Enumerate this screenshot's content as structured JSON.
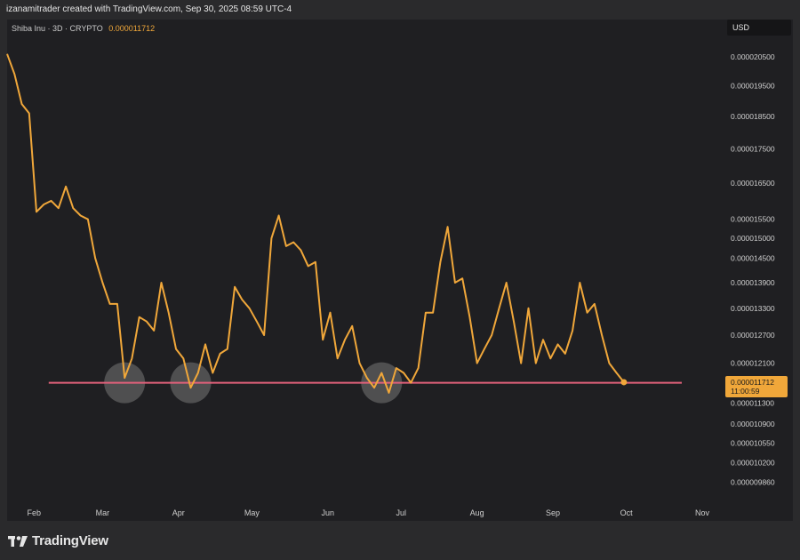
{
  "header": {
    "attribution": "izanamitrader created with TradingView.com, Sep 30, 2025 08:59 UTC-4"
  },
  "symbol": {
    "description": "Shiba Inu · 3D · CRYPTO",
    "last_price": "0.000011712"
  },
  "currency_label": "USD",
  "price_badge": {
    "value": "0.000011712",
    "countdown": "11:00:59",
    "color": "#f0a73a"
  },
  "footer": {
    "brand": "TradingView",
    "logo_icon": "tradingview-logo-icon"
  },
  "colors": {
    "line": "#f0a73a",
    "support": "#e0607a",
    "background": "#1f1f22",
    "highlight": "#8a8a8a"
  },
  "chart_data": {
    "type": "line",
    "title": "",
    "xlabel": "",
    "ylabel": "",
    "y_scale": "log",
    "ylim": [
      9.6e-06,
      2.11e-05
    ],
    "x_ticks": [
      {
        "label": "Feb",
        "date": "2025-02-01"
      },
      {
        "label": "Mar",
        "date": "2025-03-01"
      },
      {
        "label": "Apr",
        "date": "2025-04-01"
      },
      {
        "label": "May",
        "date": "2025-05-01"
      },
      {
        "label": "Jun",
        "date": "2025-06-01"
      },
      {
        "label": "Jul",
        "date": "2025-07-01"
      },
      {
        "label": "Aug",
        "date": "2025-08-01"
      },
      {
        "label": "Sep",
        "date": "2025-09-01"
      },
      {
        "label": "Oct",
        "date": "2025-10-01"
      },
      {
        "label": "Nov",
        "date": "2025-11-01"
      }
    ],
    "y_ticks": [
      "0.000020500",
      "0.000019500",
      "0.000018500",
      "0.000017500",
      "0.000016500",
      "0.000015500",
      "0.000015000",
      "0.000014500",
      "0.000013900",
      "0.000013300",
      "0.000012700",
      "0.000012100",
      "0.000011300",
      "0.000010900",
      "0.000010550",
      "0.000010200",
      "0.000009860"
    ],
    "series": [
      {
        "points": [
          [
            "2025-01-21",
            2.06e-05
          ],
          [
            "2025-01-24",
            1.99e-05
          ],
          [
            "2025-01-27",
            1.89e-05
          ],
          [
            "2025-01-30",
            1.86e-05
          ],
          [
            "2025-02-02",
            1.57e-05
          ],
          [
            "2025-02-05",
            1.59e-05
          ],
          [
            "2025-02-08",
            1.6e-05
          ],
          [
            "2025-02-11",
            1.58e-05
          ],
          [
            "2025-02-14",
            1.64e-05
          ],
          [
            "2025-02-17",
            1.58e-05
          ],
          [
            "2025-02-20",
            1.56e-05
          ],
          [
            "2025-02-23",
            1.55e-05
          ],
          [
            "2025-02-26",
            1.45e-05
          ],
          [
            "2025-03-01",
            1.39e-05
          ],
          [
            "2025-03-04",
            1.34e-05
          ],
          [
            "2025-03-07",
            1.34e-05
          ],
          [
            "2025-03-10",
            1.18e-05
          ],
          [
            "2025-03-13",
            1.22e-05
          ],
          [
            "2025-03-16",
            1.31e-05
          ],
          [
            "2025-03-19",
            1.3e-05
          ],
          [
            "2025-03-22",
            1.28e-05
          ],
          [
            "2025-03-25",
            1.39e-05
          ],
          [
            "2025-03-28",
            1.32e-05
          ],
          [
            "2025-03-31",
            1.24e-05
          ],
          [
            "2025-04-03",
            1.22e-05
          ],
          [
            "2025-04-06",
            1.16e-05
          ],
          [
            "2025-04-09",
            1.19e-05
          ],
          [
            "2025-04-12",
            1.25e-05
          ],
          [
            "2025-04-15",
            1.19e-05
          ],
          [
            "2025-04-18",
            1.23e-05
          ],
          [
            "2025-04-21",
            1.24e-05
          ],
          [
            "2025-04-24",
            1.38e-05
          ],
          [
            "2025-04-27",
            1.35e-05
          ],
          [
            "2025-04-30",
            1.33e-05
          ],
          [
            "2025-05-03",
            1.3e-05
          ],
          [
            "2025-05-06",
            1.27e-05
          ],
          [
            "2025-05-09",
            1.5e-05
          ],
          [
            "2025-05-12",
            1.56e-05
          ],
          [
            "2025-05-15",
            1.48e-05
          ],
          [
            "2025-05-18",
            1.49e-05
          ],
          [
            "2025-05-21",
            1.47e-05
          ],
          [
            "2025-05-24",
            1.43e-05
          ],
          [
            "2025-05-27",
            1.44e-05
          ],
          [
            "2025-05-30",
            1.26e-05
          ],
          [
            "2025-06-02",
            1.32e-05
          ],
          [
            "2025-06-05",
            1.22e-05
          ],
          [
            "2025-06-08",
            1.26e-05
          ],
          [
            "2025-06-11",
            1.29e-05
          ],
          [
            "2025-06-14",
            1.21e-05
          ],
          [
            "2025-06-17",
            1.18e-05
          ],
          [
            "2025-06-20",
            1.16e-05
          ],
          [
            "2025-06-23",
            1.19e-05
          ],
          [
            "2025-06-26",
            1.15e-05
          ],
          [
            "2025-06-29",
            1.2e-05
          ],
          [
            "2025-07-02",
            1.19e-05
          ],
          [
            "2025-07-05",
            1.17e-05
          ],
          [
            "2025-07-08",
            1.2e-05
          ],
          [
            "2025-07-11",
            1.32e-05
          ],
          [
            "2025-07-14",
            1.32e-05
          ],
          [
            "2025-07-17",
            1.44e-05
          ],
          [
            "2025-07-20",
            1.53e-05
          ],
          [
            "2025-07-23",
            1.39e-05
          ],
          [
            "2025-07-26",
            1.4e-05
          ],
          [
            "2025-07-29",
            1.31e-05
          ],
          [
            "2025-08-01",
            1.21e-05
          ],
          [
            "2025-08-04",
            1.24e-05
          ],
          [
            "2025-08-07",
            1.27e-05
          ],
          [
            "2025-08-10",
            1.33e-05
          ],
          [
            "2025-08-13",
            1.39e-05
          ],
          [
            "2025-08-16",
            1.3e-05
          ],
          [
            "2025-08-19",
            1.21e-05
          ],
          [
            "2025-08-22",
            1.33e-05
          ],
          [
            "2025-08-25",
            1.21e-05
          ],
          [
            "2025-08-28",
            1.26e-05
          ],
          [
            "2025-08-31",
            1.22e-05
          ],
          [
            "2025-09-03",
            1.25e-05
          ],
          [
            "2025-09-06",
            1.23e-05
          ],
          [
            "2025-09-09",
            1.28e-05
          ],
          [
            "2025-09-12",
            1.39e-05
          ],
          [
            "2025-09-15",
            1.32e-05
          ],
          [
            "2025-09-18",
            1.34e-05
          ],
          [
            "2025-09-21",
            1.27e-05
          ],
          [
            "2025-09-24",
            1.21e-05
          ],
          [
            "2025-09-27",
            1.19e-05
          ],
          [
            "2025-09-30",
            1.1712e-05
          ]
        ]
      }
    ],
    "support_line": {
      "value": 1.17e-05,
      "from": "2025-02-07",
      "to": "2025-11-01"
    },
    "highlighted_lows": [
      "2025-03-10",
      "2025-04-06",
      "2025-06-23"
    ],
    "grid": false,
    "legend": "none"
  }
}
